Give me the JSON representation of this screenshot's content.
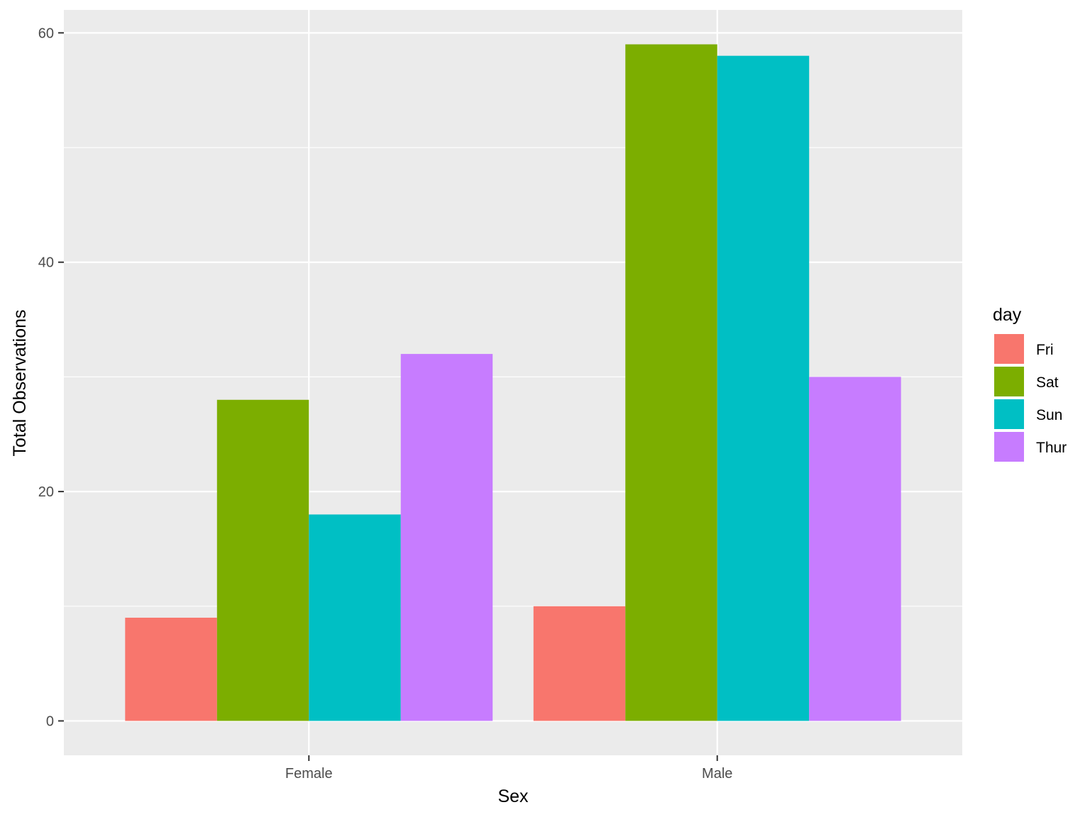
{
  "chart_data": {
    "type": "bar",
    "categories": [
      "Female",
      "Male"
    ],
    "series": [
      {
        "name": "Fri",
        "values": [
          9,
          10
        ],
        "color": "#F8766D"
      },
      {
        "name": "Sat",
        "values": [
          28,
          59
        ],
        "color": "#7CAE00"
      },
      {
        "name": "Sun",
        "values": [
          18,
          58
        ],
        "color": "#00BFC4"
      },
      {
        "name": "Thur",
        "values": [
          32,
          30
        ],
        "color": "#C77CFF"
      }
    ],
    "xlabel": "Sex",
    "ylabel": "Total Observations",
    "ylim": [
      -3,
      62
    ],
    "yticks": [
      0,
      20,
      40,
      60
    ],
    "yminor": [
      10,
      30,
      50
    ],
    "grid": true,
    "legend": {
      "title": "day",
      "position": "right"
    },
    "colors": {
      "panel": "#EBEBEB",
      "grid": "#FFFFFF",
      "tick": "#333333"
    }
  }
}
